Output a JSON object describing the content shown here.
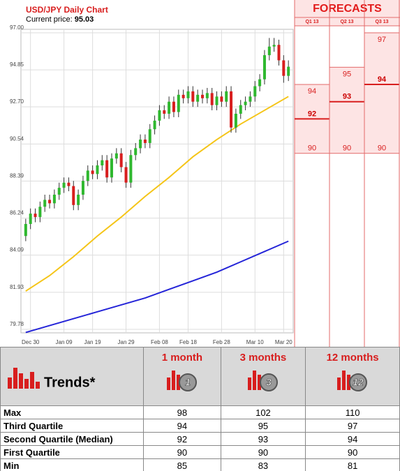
{
  "chart_data": {
    "type": "candlestick",
    "title": "USD/JPY Daily Chart",
    "price_label": "Current price:",
    "current_price": 95.03,
    "ylim": [
      79.78,
      97
    ],
    "yticks": [
      {
        "value": 97,
        "label": "97.00"
      },
      94.85,
      {
        "value": 92.7,
        "label": "92.70"
      },
      90.54,
      88.39,
      86.24,
      84.09,
      81.93,
      79.78
    ],
    "xlim": [
      -1,
      56
    ],
    "xticks": [
      {
        "value": 1,
        "label": "Dec 30"
      },
      {
        "value": 8,
        "label": "Jan 09"
      },
      {
        "value": 14,
        "label": "Jan 19"
      },
      {
        "value": 21,
        "label": "Jan 29"
      },
      {
        "value": 28,
        "label": "Feb 08"
      },
      {
        "value": 34,
        "label": "Feb 18"
      },
      {
        "value": 41,
        "label": "Feb 28"
      },
      {
        "value": 48,
        "label": "Mar 10"
      },
      {
        "value": 54,
        "label": "Mar 20"
      }
    ],
    "grid": true,
    "up_color": "#2fb82f",
    "down_color": "#d81e1e",
    "open": [
      85.2,
      85.9,
      86.5,
      86.3,
      86.9,
      87.3,
      87.1,
      87.6,
      88.0,
      88.3,
      88.1,
      87.0,
      87.6,
      88.4,
      89.0,
      88.8,
      89.3,
      89.6,
      88.6,
      89.7,
      90.0,
      89.2,
      88.3,
      89.9,
      90.3,
      90.8,
      90.6,
      91.4,
      91.9,
      92.5,
      92.3,
      93.0,
      92.4,
      93.4,
      93.2,
      93.6,
      93.0,
      93.4,
      93.2,
      93.5,
      92.8,
      93.3,
      93.0,
      93.6,
      91.5,
      92.3,
      92.8,
      93.0,
      93.3,
      93.9,
      94.3,
      95.7,
      96.2,
      96.3,
      95.4,
      94.5
    ],
    "high": [
      86.2,
      86.8,
      86.8,
      87.2,
      87.6,
      87.6,
      87.9,
      88.3,
      88.6,
      88.6,
      88.4,
      87.9,
      88.7,
      89.3,
      89.3,
      89.6,
      89.9,
      89.9,
      90.0,
      90.3,
      90.3,
      89.5,
      90.2,
      90.6,
      91.1,
      91.1,
      91.7,
      92.2,
      92.8,
      92.8,
      93.3,
      93.3,
      93.7,
      93.7,
      93.9,
      93.9,
      93.7,
      93.7,
      93.8,
      93.8,
      93.6,
      93.6,
      93.9,
      93.9,
      92.6,
      93.1,
      93.3,
      93.6,
      94.2,
      94.6,
      96.0,
      96.7,
      96.7,
      96.6,
      95.7,
      95.4
    ],
    "low": [
      84.9,
      85.6,
      86.0,
      86.0,
      86.6,
      86.8,
      86.8,
      87.3,
      87.7,
      87.8,
      86.7,
      86.7,
      87.3,
      88.1,
      88.5,
      88.5,
      89.0,
      88.3,
      88.3,
      89.4,
      88.9,
      88.0,
      88.0,
      89.6,
      90.0,
      90.3,
      90.3,
      91.1,
      91.6,
      92.0,
      92.0,
      92.1,
      92.1,
      92.9,
      92.9,
      92.7,
      92.7,
      92.9,
      92.9,
      92.5,
      92.5,
      92.7,
      92.7,
      91.2,
      91.2,
      92.0,
      92.5,
      92.7,
      93.0,
      93.6,
      94.0,
      95.4,
      95.9,
      95.1,
      94.1,
      94.2
    ],
    "close": [
      85.9,
      86.5,
      86.3,
      86.9,
      87.3,
      87.1,
      87.6,
      88.0,
      88.3,
      88.1,
      87.0,
      87.6,
      88.4,
      89.0,
      88.8,
      89.3,
      89.6,
      88.6,
      89.7,
      90.0,
      89.2,
      88.3,
      89.9,
      90.3,
      90.8,
      90.6,
      91.4,
      91.9,
      92.5,
      92.3,
      93.0,
      92.4,
      93.4,
      93.2,
      93.6,
      93.0,
      93.4,
      93.2,
      93.5,
      92.8,
      93.3,
      93.0,
      93.6,
      91.5,
      92.3,
      92.8,
      93.0,
      93.3,
      93.9,
      94.3,
      95.7,
      96.2,
      96.3,
      95.4,
      94.5,
      95.03
    ],
    "lines": [
      {
        "color": "#f5c518",
        "x": [
          0,
          5,
          10,
          15,
          20,
          25,
          30,
          35,
          40,
          45,
          50,
          55
        ],
        "values": [
          82.0,
          82.9,
          84.0,
          85.2,
          86.3,
          87.5,
          88.6,
          89.8,
          90.8,
          91.7,
          92.5,
          93.3
        ]
      },
      {
        "color": "#2424d8",
        "x": [
          0,
          5,
          10,
          15,
          20,
          25,
          30,
          35,
          40,
          45,
          50,
          55
        ],
        "values": [
          79.6,
          80.0,
          80.4,
          80.8,
          81.2,
          81.6,
          82.1,
          82.6,
          83.1,
          83.7,
          84.3,
          84.9
        ]
      }
    ],
    "forecast_title": "FORECASTS",
    "forecasts": [
      {
        "period": "Q1 13",
        "high": 94,
        "median": 92,
        "low": 90
      },
      {
        "period": "Q2 13",
        "high": 95,
        "median": 93,
        "low": 90
      },
      {
        "period": "Q3 13",
        "high": 97,
        "median": 94,
        "low": 90
      }
    ]
  },
  "trends_table": {
    "title": "Trends*",
    "columns": [
      {
        "label": "1 month",
        "badge": "1"
      },
      {
        "label": "3 months",
        "badge": "3"
      },
      {
        "label": "12 months",
        "badge": "12"
      }
    ],
    "rows": [
      {
        "label": "Max",
        "values": [
          98,
          102,
          110
        ]
      },
      {
        "label": "Third Quartile",
        "values": [
          94,
          95,
          97
        ]
      },
      {
        "label": "Second Quartile (Median)",
        "values": [
          92,
          93,
          94
        ]
      },
      {
        "label": "First Quartile",
        "values": [
          90,
          90,
          90
        ]
      },
      {
        "label": "Min",
        "values": [
          85,
          83,
          81
        ]
      }
    ]
  }
}
